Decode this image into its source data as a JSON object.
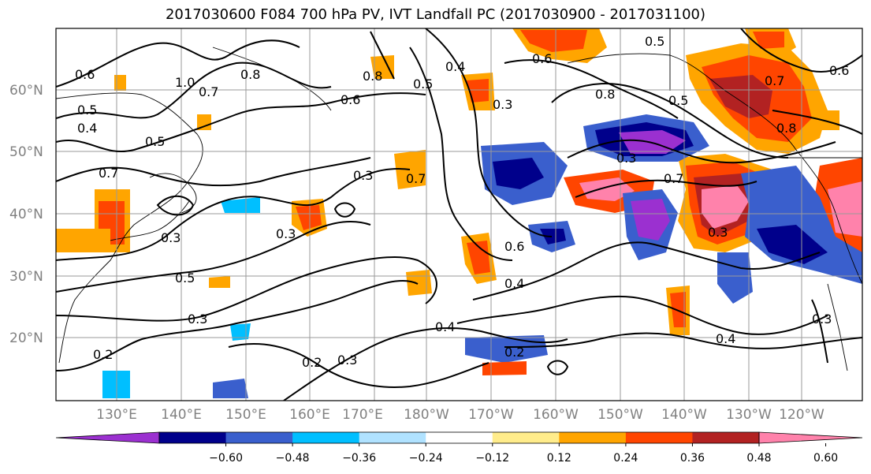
{
  "title": "2017030600 F084 700 hPa PV, IVT Landfall PC (2017030900 - 2017031100)",
  "lat_labels": [
    "60°N",
    "50°N",
    "40°N",
    "30°N",
    "20°N"
  ],
  "lon_labels": [
    "130°E",
    "140°E",
    "150°E",
    "160°E",
    "170°E",
    "180°W",
    "170°W",
    "160°W",
    "150°W",
    "140°W",
    "130°W",
    "120°W"
  ],
  "colorbar": {
    "ticks": [
      "−0.60",
      "−0.48",
      "−0.36",
      "−0.24",
      "−0.12",
      "0.12",
      "0.24",
      "0.36",
      "0.48",
      "0.60"
    ],
    "colors": [
      "#9b30d0",
      "#00008b",
      "#3a5fcd",
      "#00bfff",
      "#b0e2ff",
      "#ffffff",
      "#ffec8b",
      "#ffa500",
      "#ff4500",
      "#b22222",
      "#ff82ab"
    ]
  },
  "contour_labels": [
    "0.6",
    "1.0",
    "0.8",
    "0.5",
    "0.4",
    "0.7",
    "0.5",
    "0.7",
    "0.6",
    "0.8",
    "0.5",
    "0.3",
    "0.7",
    "0.3",
    "0.3",
    "0.5",
    "0.3",
    "0.2",
    "0.3",
    "0.2",
    "0.4",
    "0.6",
    "0.4",
    "0.2",
    "0.5",
    "0.8",
    "0.5",
    "0.7",
    "0.8",
    "0.6",
    "0.7",
    "0.3",
    "0.4",
    "0.3",
    "0.6",
    "0.3",
    "0.4",
    "0.3"
  ],
  "colors": {
    "grid": "#9a9a9a",
    "frame": "#000000",
    "axis_label": "#808080"
  }
}
